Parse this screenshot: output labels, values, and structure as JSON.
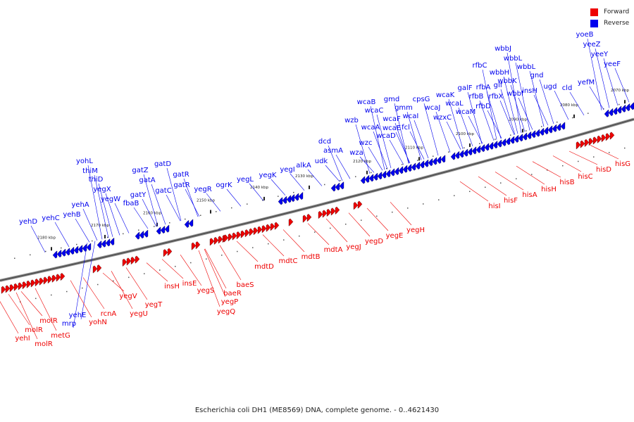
{
  "legend": [
    {
      "label": "Forward",
      "color": "#ee0000"
    },
    {
      "label": "Reverse",
      "color": "#0000ee"
    }
  ],
  "caption": "Escherichia coli DH1 (ME8569) DNA, complete genome. - 0..4621430",
  "colors": {
    "forward": "#ee0000",
    "reverse": "#0000ee",
    "backbone": "#555555"
  },
  "ticks": [
    "2070 kbp",
    "2080 kbp",
    "2090 kbp",
    "2100 kbp",
    "2110 kbp",
    "2120 kbp",
    "2130 kbp",
    "2140 kbp",
    "2150 kbp",
    "2160 kbp",
    "2170 kbp",
    "2180 kbp"
  ],
  "reverse_genes": [
    "yoeB",
    "yeeZ",
    "yeeY",
    "yeeF",
    "yefM",
    "wbbJ",
    "wbbL",
    "wbbL",
    "wbbH",
    "gnd",
    "wbbK",
    "insH",
    "glf",
    "wbbI",
    "ugd",
    "rfbC",
    "rfbA",
    "rfbX",
    "galF",
    "rfbB",
    "rfbD",
    "cld",
    "wcaK",
    "wcaL",
    "wcaM",
    "wcaJ",
    "wzxC",
    "cpsG",
    "wcaI",
    "fcl",
    "gmd",
    "gmm",
    "wcaB",
    "wcaC",
    "wcaF",
    "wcaE",
    "wcaA",
    "wcaD",
    "wzb",
    "wzc",
    "wza",
    "udk",
    "asmA",
    "dcd",
    "alkA",
    "yegI",
    "yegK",
    "yegL",
    "ogrK",
    "yegR",
    "gatD",
    "gatR",
    "gatZ",
    "gatA",
    "gatC",
    "gatR",
    "gatY",
    "fbaB",
    "yohL",
    "thiM",
    "thiD",
    "yegX",
    "yegW",
    "yehA",
    "yehB",
    "yehC",
    "yehD",
    "yehE",
    "mrp"
  ],
  "forward_genes": [
    "hisG",
    "hisD",
    "hisC",
    "hisB",
    "hisH",
    "hisA",
    "hisF",
    "hisI",
    "yegH",
    "yegE",
    "yegD",
    "yegJ",
    "mdtA",
    "mdtB",
    "mdtC",
    "mdtD",
    "baeS",
    "baeR",
    "yegP",
    "yegQ",
    "yegS",
    "insE",
    "insH",
    "yegT",
    "yegV",
    "yegU",
    "rcnA",
    "yohN",
    "metG",
    "molR",
    "molR",
    "molR",
    "yehI"
  ]
}
